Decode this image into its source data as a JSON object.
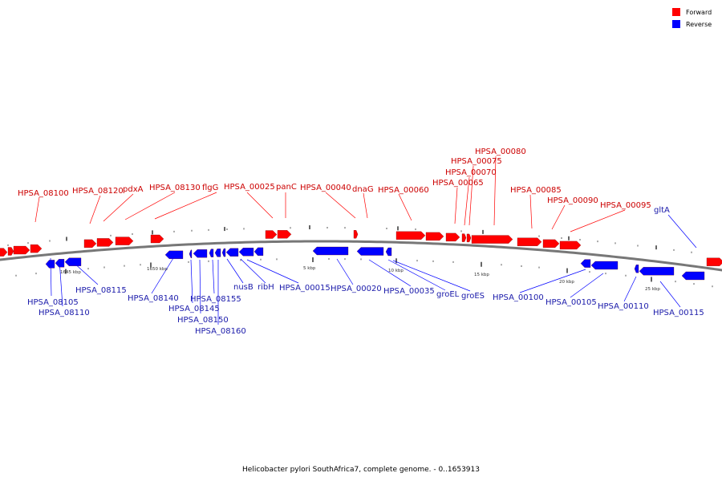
{
  "colors": {
    "forward": "#ff0000",
    "reverse": "#0000ff",
    "forward_label": "#cc0000",
    "reverse_label": "#1a1aaa",
    "backbone": "#777777"
  },
  "legend": {
    "forward": "Forward",
    "reverse": "Reverse"
  },
  "caption": "Helicobacter pylori SouthAfrica7, complete genome. - 0..1653913",
  "scale_labels": [
    "1645 kbp",
    "1650 kbp",
    "5 kbp",
    "10 kbp",
    "15 kbp",
    "20 kbp",
    "25 kbp"
  ],
  "forward_genes": [
    "HPSA_08100",
    "HPSA_08120",
    "pdxA",
    "HPSA_08130",
    "flgG",
    "HPSA_00025",
    "panC",
    "HPSA_00040",
    "dnaG",
    "HPSA_00060",
    "HPSA_00065",
    "HPSA_00070",
    "HPSA_00075",
    "HPSA_00080",
    "HPSA_00085",
    "HPSA_00090",
    "HPSA_00095"
  ],
  "reverse_genes": [
    "HPSA_08105",
    "HPSA_08110",
    "HPSA_08115",
    "HPSA_08140",
    "HPSA_08145",
    "HPSA_08150",
    "HPSA_08155",
    "HPSA_08160",
    "nusB",
    "ribH",
    "HPSA_00015",
    "HPSA_00020",
    "HPSA_00035",
    "groEL",
    "groES",
    "HPSA_00100",
    "HPSA_00105",
    "HPSA_00110",
    "HPSA_00115",
    "gltA"
  ]
}
